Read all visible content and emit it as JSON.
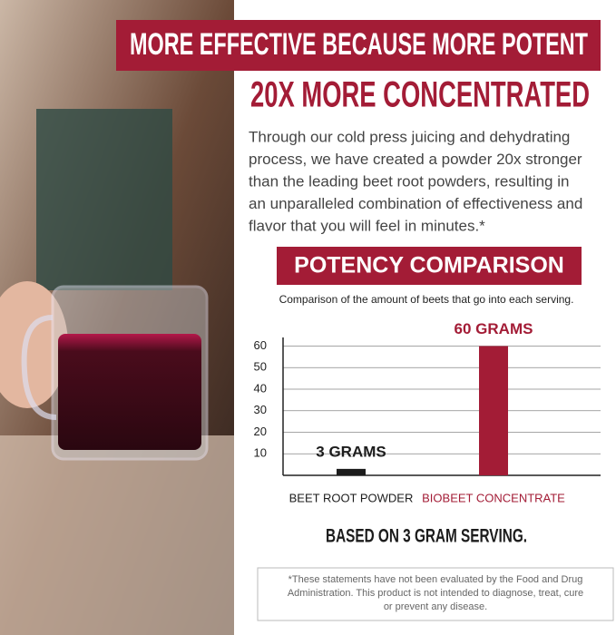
{
  "banner": "MORE EFFECTIVE BECAUSE MORE POTENT",
  "headline": "20X MORE CONCENTRATED",
  "paragraph": [
    "Through our cold press juicing and dehydrating",
    "process, we have created a powder 20x stronger",
    "than the leading beet root powders, resulting in",
    "an unparalleled combination of effectiveness and",
    "flavor that you will feel in minutes.*"
  ],
  "chart_data": {
    "type": "bar",
    "title": "POTENCY COMPARISON",
    "subtitle": "Comparison of the amount of beets that go into each serving.",
    "categories": [
      "BEET ROOT POWDER",
      "BIOBEET CONCENTRATE"
    ],
    "values": [
      3,
      60
    ],
    "value_labels": [
      "3 GRAMS",
      "60 GRAMS"
    ],
    "colors": [
      "#1c1c1c",
      "#a31c36"
    ],
    "ylim": [
      0,
      64
    ],
    "yticks": [
      10,
      20,
      30,
      40,
      50,
      60
    ],
    "grid": true,
    "annotation": "BASED ON 3 GRAM SERVING."
  },
  "disclaimer": [
    "*These statements have not been evaluated by the Food and Drug",
    "Administration. This product is not intended to diagnose, treat, cure",
    "or prevent any disease."
  ]
}
